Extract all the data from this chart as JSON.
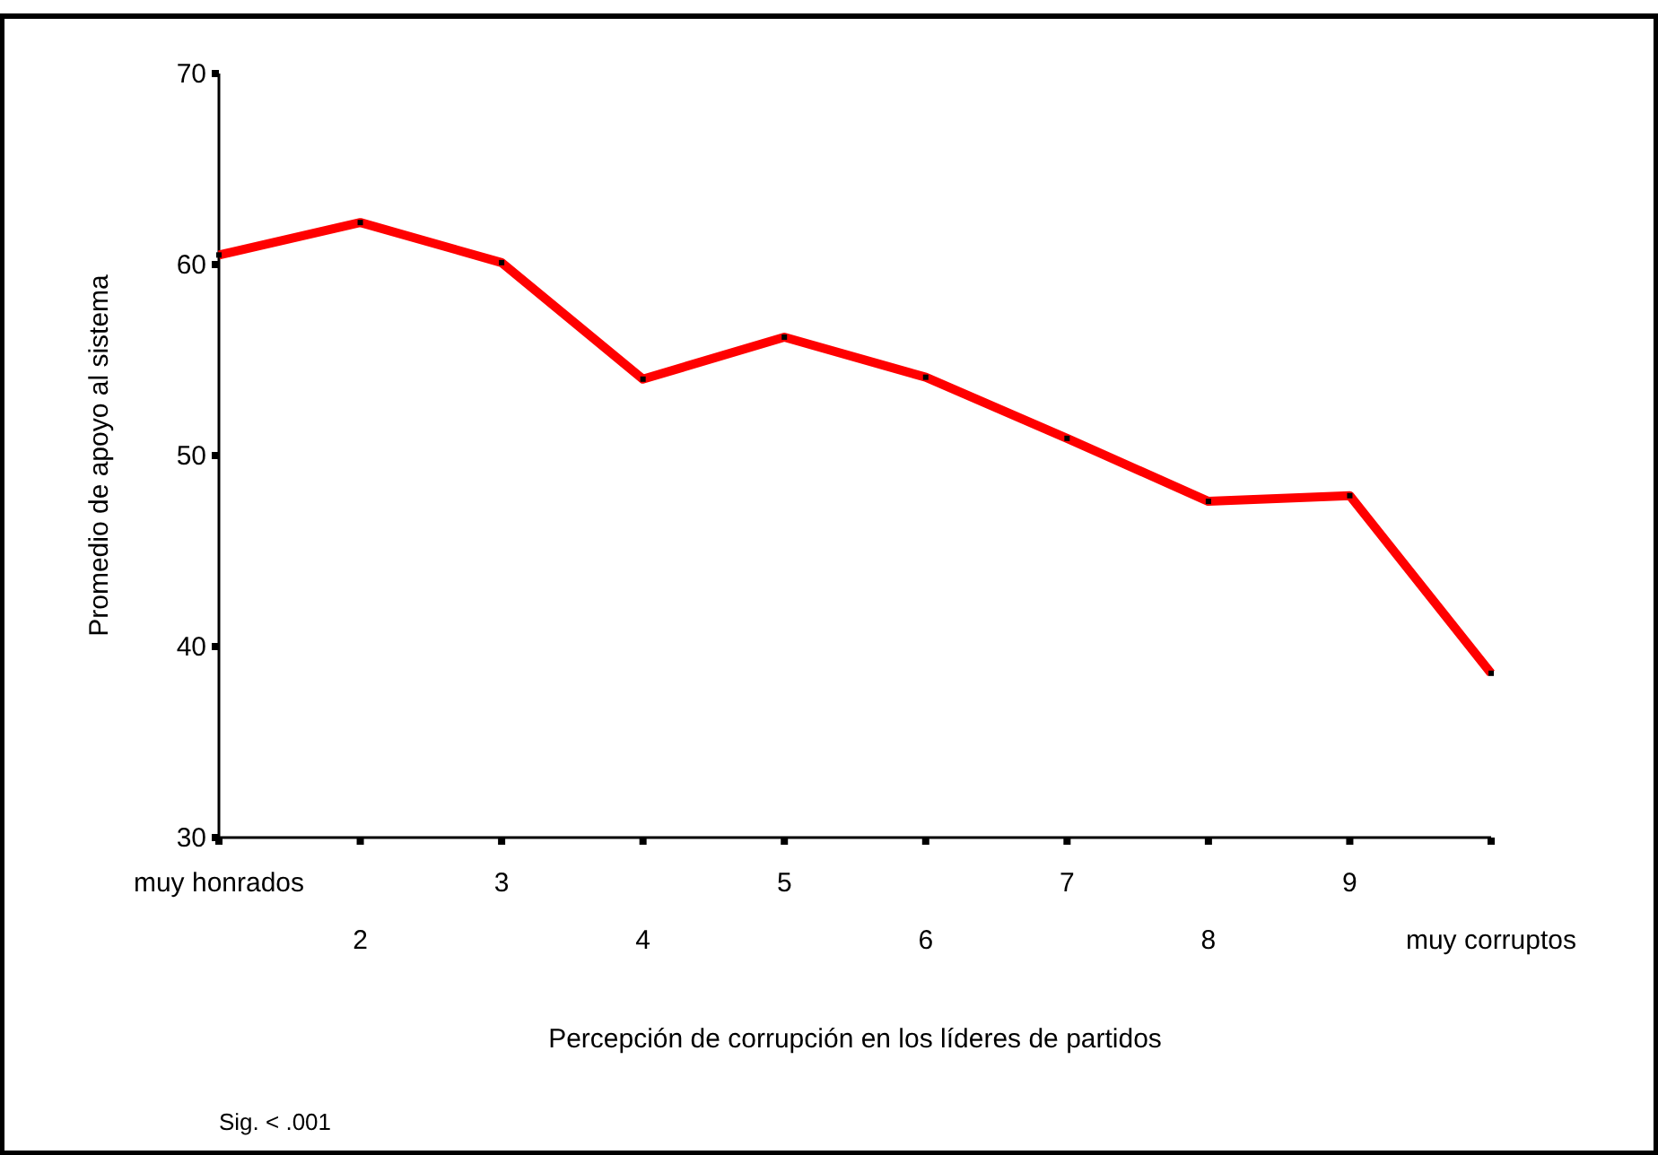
{
  "chart_data": {
    "type": "line",
    "xlabel": "Percepción de corrupción en los líderes de partidos",
    "ylabel": "Promedio de apoyo al sistema",
    "categories": [
      "muy honrados",
      "2",
      "3",
      "4",
      "5",
      "6",
      "7",
      "8",
      "9",
      "muy corruptos"
    ],
    "series": [
      {
        "color": "#ff0000",
        "values": [
          60.5,
          62.2,
          60.1,
          54.0,
          56.2,
          54.1,
          50.9,
          47.6,
          47.9,
          38.6
        ]
      }
    ],
    "ylim": [
      30,
      70
    ],
    "yticks": [
      30,
      40,
      50,
      60,
      70
    ],
    "grid": false,
    "marker": "square",
    "annotations": [
      "Sig. < .001"
    ]
  }
}
